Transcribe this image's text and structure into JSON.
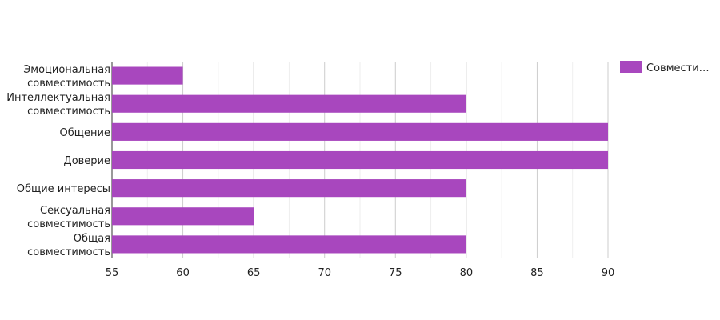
{
  "chart_data": {
    "type": "bar",
    "orientation": "horizontal",
    "categories": [
      [
        "Эмоциональная",
        "совместимость"
      ],
      [
        "Интеллектуальная",
        "совместимость"
      ],
      [
        "Общение"
      ],
      [
        "Доверие"
      ],
      [
        "Общие интересы"
      ],
      [
        "Сексуальная",
        "совместимость"
      ],
      [
        "Общая",
        "совместимость"
      ]
    ],
    "series": [
      {
        "name": "Совмести…",
        "color": "#a847be",
        "values": [
          60,
          80,
          90,
          90,
          80,
          65,
          80
        ]
      }
    ],
    "title": "",
    "xlabel": "",
    "ylabel": "",
    "xlim": [
      55,
      90
    ],
    "xticks": [
      55,
      60,
      65,
      70,
      75,
      80,
      85,
      90
    ],
    "grid": true,
    "legend_position": "top-right"
  }
}
